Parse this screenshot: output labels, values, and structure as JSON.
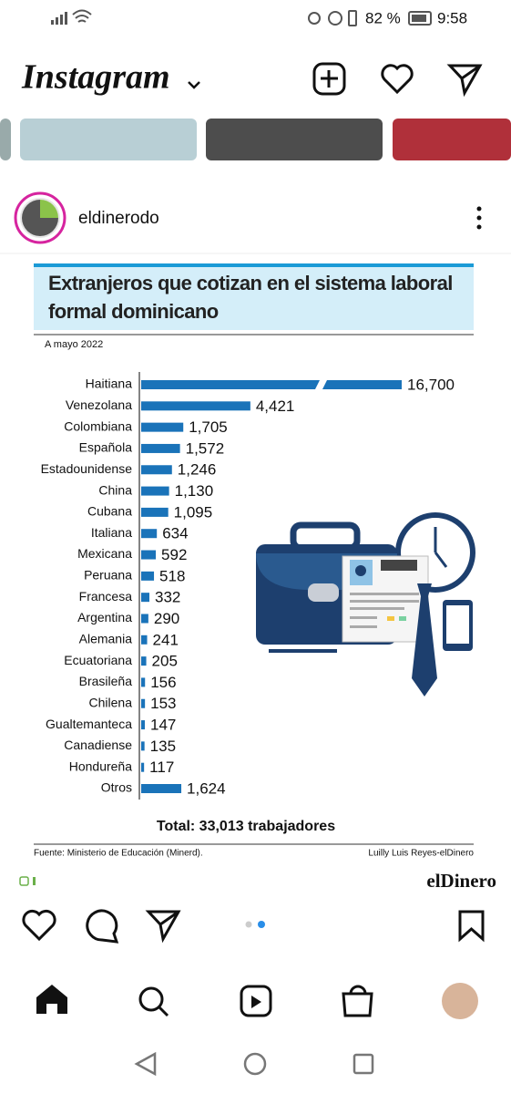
{
  "status_bar": {
    "battery": "82 %",
    "time": "9:58"
  },
  "header": {
    "title": "Instagram"
  },
  "post": {
    "username": "eldinerodo"
  },
  "chart_data": {
    "type": "bar",
    "orientation": "horizontal",
    "title": "Extranjeros que cotizan en el sistema laboral formal dominicano",
    "subtitle": "A mayo 2022",
    "categories": [
      "Haitiana",
      "Venezolana",
      "Colombiana",
      "Española",
      "Estadounidense",
      "China",
      "Cubana",
      "Italiana",
      "Mexicana",
      "Peruana",
      "Francesa",
      "Argentina",
      "Alemania",
      "Ecuatoriana",
      "Brasileña",
      "Chilena",
      "Gualtemanteca",
      "Canadiense",
      "Hondureña",
      "Otros"
    ],
    "values": [
      16700,
      4421,
      1705,
      1572,
      1246,
      1130,
      1095,
      634,
      592,
      518,
      332,
      290,
      241,
      205,
      156,
      153,
      147,
      135,
      117,
      1624
    ],
    "value_labels": [
      "16,700",
      "4,421",
      "1,705",
      "1,572",
      "1,246",
      "1,130",
      "1,095",
      "634",
      "592",
      "518",
      "332",
      "290",
      "241",
      "205",
      "156",
      "153",
      "147",
      "135",
      "117",
      "1,624"
    ],
    "color": "#1a73b9",
    "xlim": [
      0,
      4500
    ],
    "total": "Total: 33,013 trabajadores",
    "source": "Fuente: Ministerio de Educación (Minerd).",
    "credit": "Luilly Luis Reyes-elDinero",
    "brand": "elDinero"
  }
}
